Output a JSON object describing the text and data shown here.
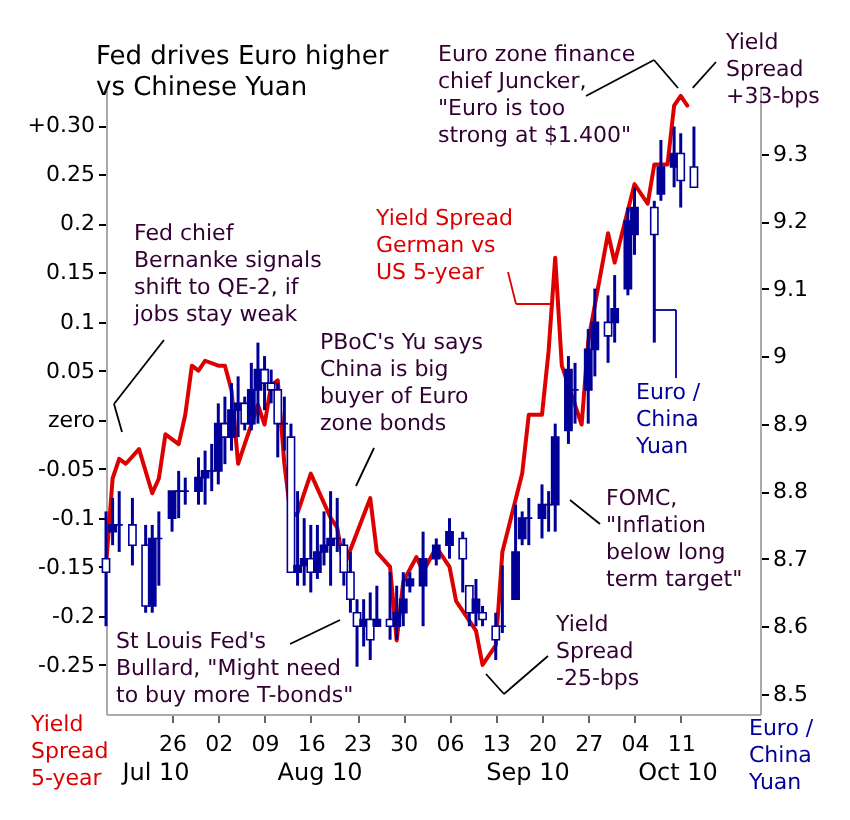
{
  "chart_data": {
    "type": "line",
    "title": "Fed drives Euro higher\nvs Chinese Yuan",
    "ylabel": "Yield\nSpread\n5-year",
    "y2label": "Euro /\nChina\nYuan",
    "xlim": [
      "--07-16",
      "--10-23"
    ],
    "xticks": [
      {
        "value": "--07-26",
        "label": "26"
      },
      {
        "value": "--08-02",
        "label": "02"
      },
      {
        "value": "--08-09",
        "label": "09"
      },
      {
        "value": "--08-16",
        "label": "16"
      },
      {
        "value": "--08-23",
        "label": "23"
      },
      {
        "value": "--08-30",
        "label": "30"
      },
      {
        "value": "--09-06",
        "label": "06"
      },
      {
        "value": "--09-13",
        "label": "13"
      },
      {
        "value": "--09-20",
        "label": "20"
      },
      {
        "value": "--09-27",
        "label": "27"
      },
      {
        "value": "--10-04",
        "label": "04"
      },
      {
        "value": "--10-11",
        "label": "11"
      }
    ],
    "ylim": [
      -0.3,
      0.34
    ],
    "yticks": [
      {
        "value": 0.3,
        "label": "+0.30"
      },
      0.25,
      0.2,
      0.15,
      0.1,
      0.05,
      {
        "value": 0,
        "label": "zero"
      },
      -0.05,
      -0.1,
      -0.15,
      -0.2,
      -0.25
    ],
    "y2lim": [
      8.47,
      9.4
    ],
    "y2ticks": [
      8.5,
      8.6,
      8.7,
      8.8,
      8.9,
      9,
      9.1,
      9.2,
      9.3
    ],
    "annotations": [
      "Fed chief\nBernanke signals\nshift to QE-2, if\njobs stay weak",
      "PBoC's Yu says\nChina is big\nbuyer of Euro\nzone bonds",
      "St Louis Fed's\nBullard, \"Might need\nto buy more T-bonds\"",
      "Euro zone finance\nchief Juncker,\n\"Euro is too\nstrong at $1.400\"",
      {
        "text": "Yield\nSpread\n+33-bps",
        "x": "--10-11",
        "y": 0.33
      },
      "Yield\nSpread\n-25-bps",
      "FOMC,\n\"Inflation\nbelow long\nterm target\"",
      "Jul 10",
      "Aug 10",
      "Sep 10",
      "Oct 10"
    ],
    "series": [
      {
        "name": "Yield Spread\nGerman vs\nUS 5-year",
        "axis": "y",
        "color": "#dd0000",
        "x": [
          "--07-16",
          "--07-17",
          "--07-18",
          "--07-19",
          "--07-21",
          "--07-23",
          "--07-24",
          "--07-25",
          "--07-27",
          "--07-28",
          "--07-29",
          "--07-30",
          "--07-31",
          "--08-02",
          "--08-03",
          "--08-04",
          "--08-05",
          "--08-06",
          "--08-07",
          "--08-08",
          "--08-09",
          "--08-10",
          "--08-11",
          "--08-12",
          "--08-13",
          "--08-14",
          "--08-16",
          "--08-17",
          "--08-19",
          "--08-20",
          "--08-21",
          "--08-23",
          "--08-25",
          "--08-26",
          "--08-28",
          "--08-29",
          "--08-30",
          "--09-01",
          "--09-02",
          "--09-04",
          "--09-06",
          "--09-07",
          "--09-10",
          "--09-11",
          "--09-13",
          "--09-14",
          "--09-17",
          "--09-18",
          "--09-20",
          "--09-21",
          "--09-22",
          "--09-23",
          "--09-26",
          "--09-27",
          "--09-30",
          "--10-01",
          "--10-04",
          "--10-06",
          "--10-07",
          "--10-09",
          "--10-10",
          "--10-11",
          "--10-12"
        ],
        "values": [
          -0.15,
          -0.06,
          -0.04,
          -0.045,
          -0.03,
          -0.075,
          -0.06,
          -0.015,
          -0.025,
          0.005,
          0.055,
          0.05,
          0.06,
          0.055,
          0.055,
          0.03,
          -0.045,
          -0.025,
          -0.005,
          0.015,
          -0.005,
          0.035,
          0.04,
          -0.045,
          -0.1,
          -0.095,
          -0.055,
          -0.07,
          -0.1,
          -0.11,
          -0.15,
          -0.115,
          -0.08,
          -0.135,
          -0.15,
          -0.225,
          -0.165,
          -0.14,
          -0.155,
          -0.13,
          -0.15,
          -0.185,
          -0.215,
          -0.25,
          -0.23,
          -0.135,
          -0.055,
          0.005,
          0.005,
          0.07,
          0.165,
          0.055,
          -0.005,
          0.08,
          0.19,
          0.16,
          0.24,
          0.22,
          0.26,
          0.26,
          0.32,
          0.33,
          0.32
        ]
      },
      {
        "name": "Euro /\nChina\nYuan",
        "type": "candlestick",
        "axis": "y2",
        "color": "#000099",
        "x": [
          "--07-16",
          "--07-17",
          "--07-18",
          "--07-20",
          "--07-22",
          "--07-23",
          "--07-24",
          "--07-26",
          "--07-27",
          "--07-28",
          "--07-30",
          "--07-31",
          "--08-01",
          "--08-02",
          "--08-03",
          "--08-04",
          "--08-05",
          "--08-06",
          "--08-07",
          "--08-08",
          "--08-09",
          "--08-10",
          "--08-11",
          "--08-12",
          "--08-13",
          "--08-14",
          "--08-15",
          "--08-16",
          "--08-17",
          "--08-18",
          "--08-19",
          "--08-20",
          "--08-21",
          "--08-22",
          "--08-23",
          "--08-24",
          "--08-25",
          "--08-26",
          "--08-28",
          "--08-29",
          "--08-30",
          "--08-31",
          "--09-02",
          "--09-04",
          "--09-06",
          "--09-08",
          "--09-09",
          "--09-10",
          "--09-11",
          "--09-13",
          "--09-14",
          "--09-16",
          "--09-17",
          "--09-18",
          "--09-20",
          "--09-21",
          "--09-22",
          "--09-24",
          "--09-25",
          "--09-27",
          "--09-28",
          "--09-30",
          "--10-01",
          "--10-03",
          "--10-04",
          "--10-07",
          "--10-08",
          "--10-10",
          "--10-11",
          "--10-13"
        ],
        "ohlc": [
          [
            8.7,
            8.77,
            8.6,
            8.68
          ],
          [
            8.74,
            8.79,
            8.72,
            8.75
          ],
          [
            8.75,
            8.8,
            8.71,
            8.75
          ],
          [
            8.75,
            8.79,
            8.69,
            8.72
          ],
          [
            8.72,
            8.75,
            8.62,
            8.63
          ],
          [
            8.63,
            8.75,
            8.62,
            8.73
          ],
          [
            8.73,
            8.77,
            8.66,
            8.73
          ],
          [
            8.76,
            8.8,
            8.74,
            8.8
          ],
          [
            8.8,
            8.83,
            8.76,
            8.8
          ],
          [
            8.8,
            8.82,
            8.78,
            8.8
          ],
          [
            8.8,
            8.85,
            8.78,
            8.82
          ],
          [
            8.82,
            8.86,
            8.78,
            8.83
          ],
          [
            8.83,
            8.87,
            8.8,
            8.83
          ],
          [
            8.83,
            8.93,
            8.81,
            8.9
          ],
          [
            8.9,
            8.94,
            8.84,
            8.88
          ],
          [
            8.88,
            8.96,
            8.86,
            8.92
          ],
          [
            8.92,
            8.97,
            8.88,
            8.93
          ],
          [
            8.93,
            8.94,
            8.89,
            8.9
          ],
          [
            8.9,
            8.99,
            8.89,
            8.95
          ],
          [
            8.95,
            9.02,
            8.9,
            8.98
          ],
          [
            8.98,
            9,
            8.92,
            8.96
          ],
          [
            8.96,
            8.98,
            8.93,
            8.95
          ],
          [
            8.95,
            8.96,
            8.85,
            8.9
          ],
          [
            8.9,
            8.94,
            8.86,
            8.9
          ],
          [
            8.88,
            8.9,
            8.68,
            8.68
          ],
          [
            8.68,
            8.8,
            8.66,
            8.69
          ],
          [
            8.69,
            8.76,
            8.66,
            8.7
          ],
          [
            8.7,
            8.75,
            8.65,
            8.68
          ],
          [
            8.68,
            8.75,
            8.67,
            8.71
          ],
          [
            8.71,
            8.77,
            8.69,
            8.72
          ],
          [
            8.72,
            8.8,
            8.66,
            8.73
          ],
          [
            8.73,
            8.79,
            8.71,
            8.73
          ],
          [
            8.72,
            8.73,
            8.66,
            8.68
          ],
          [
            8.68,
            8.71,
            8.62,
            8.64
          ],
          [
            8.62,
            8.64,
            8.54,
            8.6
          ],
          [
            8.6,
            8.64,
            8.57,
            8.61
          ],
          [
            8.61,
            8.65,
            8.55,
            8.58
          ],
          [
            8.6,
            8.66,
            8.6,
            8.61
          ],
          [
            8.61,
            8.68,
            8.58,
            8.6
          ],
          [
            8.6,
            8.66,
            8.58,
            8.62
          ],
          [
            8.62,
            8.68,
            8.6,
            8.64
          ],
          [
            8.66,
            8.68,
            8.65,
            8.67
          ],
          [
            8.66,
            8.74,
            8.6,
            8.7
          ],
          [
            8.7,
            8.73,
            8.69,
            8.72
          ],
          [
            8.72,
            8.76,
            8.7,
            8.74
          ],
          [
            8.73,
            8.74,
            8.65,
            8.7
          ],
          [
            8.66,
            8.66,
            8.6,
            8.62
          ],
          [
            8.62,
            8.67,
            8.6,
            8.64
          ],
          [
            8.62,
            8.63,
            8.6,
            8.61
          ],
          [
            8.6,
            8.62,
            8.55,
            8.58
          ],
          [
            8.6,
            8.69,
            8.59,
            8.6
          ],
          [
            8.64,
            8.78,
            8.64,
            8.71
          ],
          [
            8.73,
            8.77,
            8.72,
            8.76
          ],
          [
            8.76,
            8.79,
            8.72,
            8.76
          ],
          [
            8.76,
            8.81,
            8.73,
            8.78
          ],
          [
            8.78,
            8.8,
            8.74,
            8.78
          ],
          [
            8.78,
            8.9,
            8.74,
            8.88
          ],
          [
            8.89,
            9,
            8.87,
            8.98
          ],
          [
            8.95,
            8.99,
            8.9,
            8.95
          ],
          [
            8.95,
            9.04,
            8.9,
            9.01
          ],
          [
            9.01,
            9.1,
            8.97,
            9.05
          ],
          [
            9.05,
            9.09,
            8.99,
            9.03
          ],
          [
            9.05,
            9.12,
            9.02,
            9.07
          ],
          [
            9.1,
            9.22,
            9.09,
            9.2
          ],
          [
            9.18,
            9.25,
            9.15,
            9.22
          ],
          [
            9.22,
            9.23,
            9.02,
            9.18
          ],
          [
            9.24,
            9.32,
            9.23,
            9.28
          ],
          [
            9.28,
            9.34,
            9.25,
            9.3
          ],
          [
            9.3,
            9.33,
            9.22,
            9.26
          ],
          [
            9.28,
            9.34,
            9.25,
            9.25
          ]
        ]
      }
    ]
  }
}
